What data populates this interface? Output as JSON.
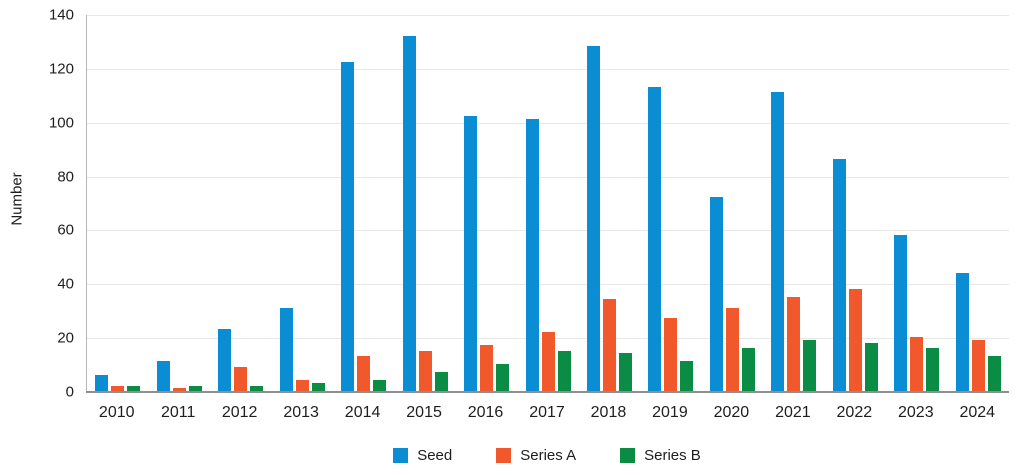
{
  "chart_data": {
    "type": "bar",
    "ylabel": "Number",
    "categories": [
      "2010",
      "2011",
      "2012",
      "2013",
      "2014",
      "2015",
      "2016",
      "2017",
      "2018",
      "2019",
      "2020",
      "2021",
      "2022",
      "2023",
      "2024"
    ],
    "series": [
      {
        "name": "Seed",
        "color": "#0a8dd3",
        "values": [
          6,
          11,
          23,
          31,
          122,
          132,
          102,
          101,
          128,
          113,
          72,
          111,
          86,
          58,
          44
        ]
      },
      {
        "name": "Series A",
        "color": "#f1582b",
        "values": [
          2,
          1,
          9,
          4,
          13,
          15,
          17,
          22,
          34,
          27,
          31,
          35,
          38,
          20,
          19
        ]
      },
      {
        "name": "Series B",
        "color": "#0b8c45",
        "values": [
          2,
          2,
          2,
          3,
          4,
          7,
          10,
          15,
          14,
          11,
          16,
          19,
          18,
          16,
          13
        ]
      }
    ],
    "ylim": [
      0,
      140
    ],
    "yticks": [
      0,
      20,
      40,
      60,
      80,
      100,
      120,
      140
    ],
    "grid": true,
    "legend_position": "bottom"
  }
}
